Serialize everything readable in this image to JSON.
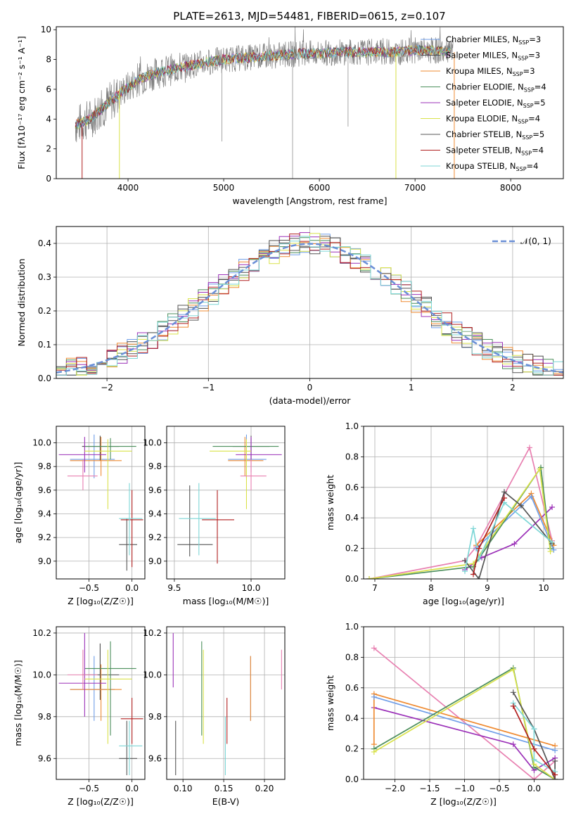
{
  "page_title": "PLATE=2613, MJD=54481, FIBERID=0615, z=0.107",
  "colors": {
    "Chabrier MILES": "#6f9ee8",
    "Salpeter MILES": "#4d4d4d",
    "Kroupa MILES": "#ef8b32",
    "Chabrier ELODIE": "#4c8f5c",
    "Salpeter ELODIE": "#9b30b8",
    "Kroupa ELODIE": "#d9e24a",
    "Chabrier STELIB": "#555555",
    "Salpeter STELIB": "#b11f1f",
    "Kroupa STELIB": "#7dd6d6",
    "pink": "#e87fb0",
    "gaussian": "#6a8fd6"
  },
  "chart_data": [
    {
      "type": "line",
      "title": "PLATE=2613, MJD=54481, FIBERID=0615, z=0.107",
      "xlabel": "wavelength [Angstrom, rest frame]",
      "ylabel": "Flux [fλ10⁻¹⁷ erg cm⁻² s⁻¹ A⁻¹]",
      "xlim": [
        3250,
        8550
      ],
      "ylim": [
        0,
        10.2
      ],
      "xticks": [
        "4000",
        "5000",
        "6000",
        "7000",
        "8000"
      ],
      "yticks": [
        "0",
        "2",
        "4",
        "6",
        "8",
        "10"
      ],
      "grid": false,
      "legend_position": "right",
      "legend": [
        {
          "name": "Chabrier MILES",
          "nssp": "3"
        },
        {
          "name": "Salpeter MILES",
          "nssp": "3"
        },
        {
          "name": "Kroupa MILES",
          "nssp": "3"
        },
        {
          "name": "Chabrier ELODIE",
          "nssp": "4"
        },
        {
          "name": "Salpeter ELODIE",
          "nssp": "5"
        },
        {
          "name": "Kroupa ELODIE",
          "nssp": "4"
        },
        {
          "name": "Chabrier STELIB",
          "nssp": "5"
        },
        {
          "name": "Salpeter STELIB",
          "nssp": "4"
        },
        {
          "name": "Kroupa STELIB",
          "nssp": "4"
        }
      ],
      "series": [
        {
          "x": [
            3450,
            3600,
            3800,
            3950,
            4100,
            4300,
            4500,
            4800,
            5000,
            5200,
            5400,
            5600,
            5800,
            6000,
            6200,
            6400,
            6600,
            6800,
            7000,
            7200,
            7350
          ],
          "values": [
            3.6,
            4.0,
            5.1,
            5.9,
            6.6,
            7.1,
            7.4,
            7.8,
            8.0,
            8.1,
            8.2,
            8.3,
            8.4,
            8.4,
            8.5,
            8.5,
            8.5,
            8.5,
            8.6,
            8.6,
            8.5
          ]
        }
      ]
    },
    {
      "type": "line",
      "xlabel": "(data-model)/error",
      "ylabel": "Normed distribution",
      "xlim": [
        -2.5,
        2.5
      ],
      "ylim": [
        0,
        0.45
      ],
      "xticks": [
        "−2",
        "−1",
        "0",
        "1",
        "2"
      ],
      "yticks": [
        "0.0",
        "0.1",
        "0.2",
        "0.3",
        "0.4"
      ],
      "grid": true,
      "legend_position": "top-right",
      "legend": [
        "𝒩(0, 1)"
      ],
      "bins_x_step": 0.1
    },
    {
      "type": "scatter",
      "xlabel": "Z [log₁₀(Z/Z☉)]",
      "ylabel": "age  [log₁₀(age/yr)]",
      "xlim": [
        -0.88,
        0.15
      ],
      "ylim": [
        8.85,
        10.14
      ],
      "xticks": [
        "−0.5",
        "0.0"
      ],
      "yticks": [
        "9.0",
        "9.2",
        "9.4",
        "9.6",
        "9.8",
        "10.0"
      ],
      "grid": true,
      "points": [
        {
          "c": "Chabrier MILES",
          "x": -0.44,
          "xl": -0.72,
          "xh": -0.2,
          "y": 9.86,
          "yl": 9.7,
          "yh": 10.07
        },
        {
          "c": "Salpeter MILES",
          "x": -0.37,
          "xl": -0.58,
          "xh": -0.15,
          "y": 9.97,
          "yl": 9.85,
          "yh": 10.06
        },
        {
          "c": "Kroupa MILES",
          "x": -0.36,
          "xl": -0.72,
          "xh": -0.12,
          "y": 9.85,
          "yl": 9.72,
          "yh": 10.05
        },
        {
          "c": "Chabrier ELODIE",
          "x": -0.25,
          "xl": -0.55,
          "xh": 0.05,
          "y": 9.97,
          "yl": 9.86,
          "yh": 10.04
        },
        {
          "c": "Salpeter ELODIE",
          "x": -0.55,
          "xl": -0.85,
          "xh": -0.3,
          "y": 9.9,
          "yl": 9.75,
          "yh": 10.05
        },
        {
          "c": "Kroupa ELODIE",
          "x": -0.28,
          "xl": -0.55,
          "xh": 0.0,
          "y": 9.93,
          "yl": 9.44,
          "yh": 10.03
        },
        {
          "c": "Chabrier STELIB",
          "x": -0.06,
          "xl": -0.15,
          "xh": 0.06,
          "y": 9.14,
          "yl": 8.92,
          "yh": 9.36
        },
        {
          "c": "Salpeter STELIB",
          "x": 0.0,
          "xl": -0.13,
          "xh": 0.13,
          "y": 9.35,
          "yl": 8.95,
          "yh": 9.6
        },
        {
          "c": "Kroupa STELIB",
          "x": -0.03,
          "xl": -0.15,
          "xh": 0.12,
          "y": 9.36,
          "yl": 9.05,
          "yh": 9.66
        },
        {
          "c": "pink",
          "x": -0.57,
          "xl": -0.75,
          "xh": -0.4,
          "y": 9.72,
          "yl": 9.6,
          "yh": 9.86
        }
      ]
    },
    {
      "type": "scatter",
      "xlabel": "mass [log₁₀(M/M☉)]",
      "xlim": [
        9.45,
        10.22
      ],
      "ylim": [
        8.85,
        10.14
      ],
      "xticks": [
        "9.5",
        "10.0"
      ],
      "yticks": [
        "9.0",
        "9.2",
        "9.4",
        "9.6",
        "9.8",
        "10.0"
      ],
      "grid": true,
      "points": [
        {
          "c": "Chabrier MILES",
          "x": 9.97,
          "xl": 9.85,
          "xh": 10.1,
          "y": 9.86,
          "yl": 9.7,
          "yh": 10.07
        },
        {
          "c": "Salpeter MILES",
          "x": 10.0,
          "xl": 9.88,
          "xh": 10.12,
          "y": 9.97,
          "yl": 9.85,
          "yh": 10.06
        },
        {
          "c": "Kroupa MILES",
          "x": 9.96,
          "xl": 9.85,
          "xh": 10.08,
          "y": 9.85,
          "yl": 9.72,
          "yh": 10.05
        },
        {
          "c": "Chabrier ELODIE",
          "x": 10.0,
          "xl": 9.75,
          "xh": 10.18,
          "y": 9.97,
          "yl": 9.86,
          "yh": 10.04
        },
        {
          "c": "Salpeter ELODIE",
          "x": 10.0,
          "xl": 9.9,
          "xh": 10.2,
          "y": 9.9,
          "yl": 9.75,
          "yh": 10.05
        },
        {
          "c": "Kroupa ELODIE",
          "x": 9.97,
          "xl": 9.73,
          "xh": 10.0,
          "y": 9.93,
          "yl": 9.44,
          "yh": 10.03
        },
        {
          "c": "Chabrier STELIB",
          "x": 9.6,
          "xl": 9.52,
          "xh": 9.75,
          "y": 9.14,
          "yl": 9.04,
          "yh": 9.64
        },
        {
          "c": "Salpeter STELIB",
          "x": 9.78,
          "xl": 9.68,
          "xh": 9.89,
          "y": 9.35,
          "yl": 8.98,
          "yh": 9.6
        },
        {
          "c": "Kroupa STELIB",
          "x": 9.66,
          "xl": 9.53,
          "xh": 9.77,
          "y": 9.36,
          "yl": 9.05,
          "yh": 9.66
        },
        {
          "c": "pink",
          "x": 10.0,
          "xl": 9.93,
          "xh": 10.1,
          "y": 9.72,
          "yl": 9.6,
          "yh": 9.86
        }
      ]
    },
    {
      "type": "line",
      "xlabel": "age  [log₁₀(age/yr)]",
      "ylabel": "mass weight",
      "xlim": [
        6.8,
        10.35
      ],
      "ylim": [
        0,
        1.0
      ],
      "xticks": [
        "7",
        "8",
        "9",
        "10"
      ],
      "yticks": [
        "0.0",
        "0.2",
        "0.4",
        "0.6",
        "0.8",
        "1.0"
      ],
      "grid": true,
      "series": [
        {
          "c": "pink",
          "x": [
            6.9,
            8.6,
            8.8,
            9.75,
            10.15
          ],
          "values": [
            0.0,
            0.12,
            0.21,
            0.86,
            0.25
          ]
        },
        {
          "c": "Salpeter ELODIE",
          "x": [
            8.6,
            8.9,
            9.48,
            10.15
          ],
          "values": [
            0.06,
            0.14,
            0.23,
            0.47
          ]
        },
        {
          "c": "Kroupa MILES",
          "x": [
            8.8,
            9.78,
            10.18
          ],
          "values": [
            0.22,
            0.56,
            0.22
          ]
        },
        {
          "c": "Chabrier MILES",
          "x": [
            8.8,
            9.78,
            10.18
          ],
          "values": [
            0.2,
            0.54,
            0.19
          ]
        },
        {
          "c": "Chabrier ELODIE",
          "x": [
            6.9,
            8.75,
            9.95,
            10.12
          ],
          "values": [
            0.0,
            0.08,
            0.73,
            0.2
          ]
        },
        {
          "c": "Kroupa ELODIE",
          "x": [
            6.9,
            8.75,
            9.93,
            10.12
          ],
          "values": [
            0.0,
            0.1,
            0.72,
            0.18
          ]
        },
        {
          "c": "Chabrier STELIB",
          "x": [
            8.6,
            8.85,
            9.3,
            9.6,
            10.15
          ],
          "values": [
            0.12,
            0.0,
            0.57,
            0.48,
            0.23
          ]
        },
        {
          "c": "Kroupa STELIB",
          "x": [
            8.6,
            8.75,
            8.85,
            9.3,
            10.15
          ],
          "values": [
            0.05,
            0.33,
            0.13,
            0.5,
            0.24
          ]
        },
        {
          "c": "Salpeter STELIB",
          "x": [
            8.75,
            8.85,
            9.3
          ],
          "values": [
            0.03,
            0.2,
            0.53
          ]
        }
      ]
    },
    {
      "type": "scatter",
      "xlabel": "Z [log₁₀(Z/Z☉)]",
      "ylabel": "mass [log₁₀(M/M☉)]",
      "xlim": [
        -0.88,
        0.15
      ],
      "ylim": [
        9.5,
        10.23
      ],
      "xticks": [
        "−0.5",
        "0.0"
      ],
      "yticks": [
        "9.6",
        "9.8",
        "10.0",
        "10.2"
      ],
      "grid": true,
      "points": [
        {
          "c": "Chabrier MILES",
          "x": -0.44,
          "xl": -0.72,
          "xh": -0.2,
          "y": 9.93,
          "yl": 9.78,
          "yh": 10.09
        },
        {
          "c": "Salpeter MILES",
          "x": -0.37,
          "xl": -0.58,
          "xh": -0.15,
          "y": 10.0,
          "yl": 9.88,
          "yh": 10.15
        },
        {
          "c": "Kroupa MILES",
          "x": -0.36,
          "xl": -0.72,
          "xh": -0.12,
          "y": 9.93,
          "yl": 9.78,
          "yh": 10.05
        },
        {
          "c": "Chabrier ELODIE",
          "x": -0.25,
          "xl": -0.55,
          "xh": 0.05,
          "y": 10.03,
          "yl": 9.71,
          "yh": 10.16
        },
        {
          "c": "Salpeter ELODIE",
          "x": -0.55,
          "xl": -0.85,
          "xh": -0.3,
          "y": 9.96,
          "yl": 9.8,
          "yh": 10.2
        },
        {
          "c": "Kroupa ELODIE",
          "x": -0.28,
          "xl": -0.55,
          "xh": 0.0,
          "y": 9.98,
          "yl": 9.67,
          "yh": 10.12
        },
        {
          "c": "Chabrier STELIB",
          "x": -0.06,
          "xl": -0.15,
          "xh": 0.06,
          "y": 9.6,
          "yl": 9.52,
          "yh": 9.78
        },
        {
          "c": "Salpeter STELIB",
          "x": 0.0,
          "xl": -0.13,
          "xh": 0.13,
          "y": 9.79,
          "yl": 9.67,
          "yh": 9.89
        },
        {
          "c": "Kroupa STELIB",
          "x": -0.03,
          "xl": -0.15,
          "xh": 0.12,
          "y": 9.66,
          "yl": 9.52,
          "yh": 9.78
        },
        {
          "c": "pink",
          "x": -0.57,
          "xl": -0.75,
          "xh": -0.4,
          "y": 10.0,
          "yl": 9.93,
          "yh": 10.12
        }
      ]
    },
    {
      "type": "scatter",
      "xlabel": "E(B-V)",
      "xlim": [
        0.08,
        0.225
      ],
      "ylim": [
        9.5,
        10.23
      ],
      "xticks": [
        "0.10",
        "0.15",
        "0.20"
      ],
      "yticks": [
        "9.6",
        "9.8",
        "10.0",
        "10.2"
      ],
      "grid": true,
      "points": [
        {
          "c": "Chabrier MILES",
          "x": 0.183,
          "yl": 9.78,
          "yh": 10.09
        },
        {
          "c": "Kroupa MILES",
          "x": 0.183,
          "yl": 9.78,
          "yh": 10.09
        },
        {
          "c": "Salpeter ELODIE",
          "x": 0.088,
          "yl": 9.94,
          "yh": 10.2
        },
        {
          "c": "Chabrier ELODIE",
          "x": 0.123,
          "yl": 9.71,
          "yh": 10.16
        },
        {
          "c": "Kroupa ELODIE",
          "x": 0.125,
          "yl": 9.67,
          "yh": 10.12
        },
        {
          "c": "Chabrier STELIB",
          "x": 0.091,
          "yl": 9.52,
          "yh": 9.78
        },
        {
          "c": "Salpeter STELIB",
          "x": 0.154,
          "yl": 9.67,
          "yh": 9.89
        },
        {
          "c": "Kroupa STELIB",
          "x": 0.152,
          "yl": 9.52,
          "yh": 9.8
        },
        {
          "c": "pink",
          "x": 0.221,
          "yl": 9.93,
          "yh": 10.12
        }
      ]
    },
    {
      "type": "line",
      "xlabel": "Z [log₁₀(Z/Z☉)]",
      "ylabel": "mass weight",
      "xlim": [
        -2.45,
        0.42
      ],
      "ylim": [
        0,
        1.0
      ],
      "xticks": [
        "−2.0",
        "−1.5",
        "−1.0",
        "−0.5",
        "0.0"
      ],
      "yticks": [
        "0.0",
        "0.2",
        "0.4",
        "0.6",
        "0.8",
        "1.0"
      ],
      "grid": true,
      "series": [
        {
          "c": "pink",
          "x": [
            -2.3,
            0.0,
            0.3
          ],
          "values": [
            0.86,
            0.0,
            0.12
          ]
        },
        {
          "c": "Salpeter ELODIE",
          "x": [
            -2.3,
            -0.3,
            0.0,
            0.3
          ],
          "values": [
            0.47,
            0.23,
            0.06,
            0.14
          ]
        },
        {
          "c": "Kroupa MILES",
          "x": [
            -2.3,
            -2.3,
            0.3
          ],
          "values": [
            0.23,
            0.56,
            0.22
          ]
        },
        {
          "c": "Chabrier MILES",
          "x": [
            -2.3,
            0.3
          ],
          "values": [
            0.54,
            0.19
          ]
        },
        {
          "c": "Chabrier ELODIE",
          "x": [
            -2.3,
            -0.3,
            0.0,
            0.3
          ],
          "values": [
            0.2,
            0.73,
            0.08,
            0.0
          ]
        },
        {
          "c": "Kroupa ELODIE",
          "x": [
            -2.3,
            -0.3,
            0.0,
            0.3
          ],
          "values": [
            0.18,
            0.72,
            0.1,
            0.0
          ]
        },
        {
          "c": "Chabrier STELIB",
          "x": [
            -0.3,
            0.0,
            0.3,
            0.3
          ],
          "values": [
            0.57,
            0.33,
            0.0,
            0.12
          ]
        },
        {
          "c": "Kroupa STELIB",
          "x": [
            -0.3,
            0.0,
            0.0,
            0.3
          ],
          "values": [
            0.5,
            0.33,
            0.13,
            0.05
          ]
        },
        {
          "c": "Salpeter STELIB",
          "x": [
            -0.3,
            0.0,
            0.3
          ],
          "values": [
            0.48,
            0.2,
            0.03
          ]
        }
      ]
    }
  ]
}
